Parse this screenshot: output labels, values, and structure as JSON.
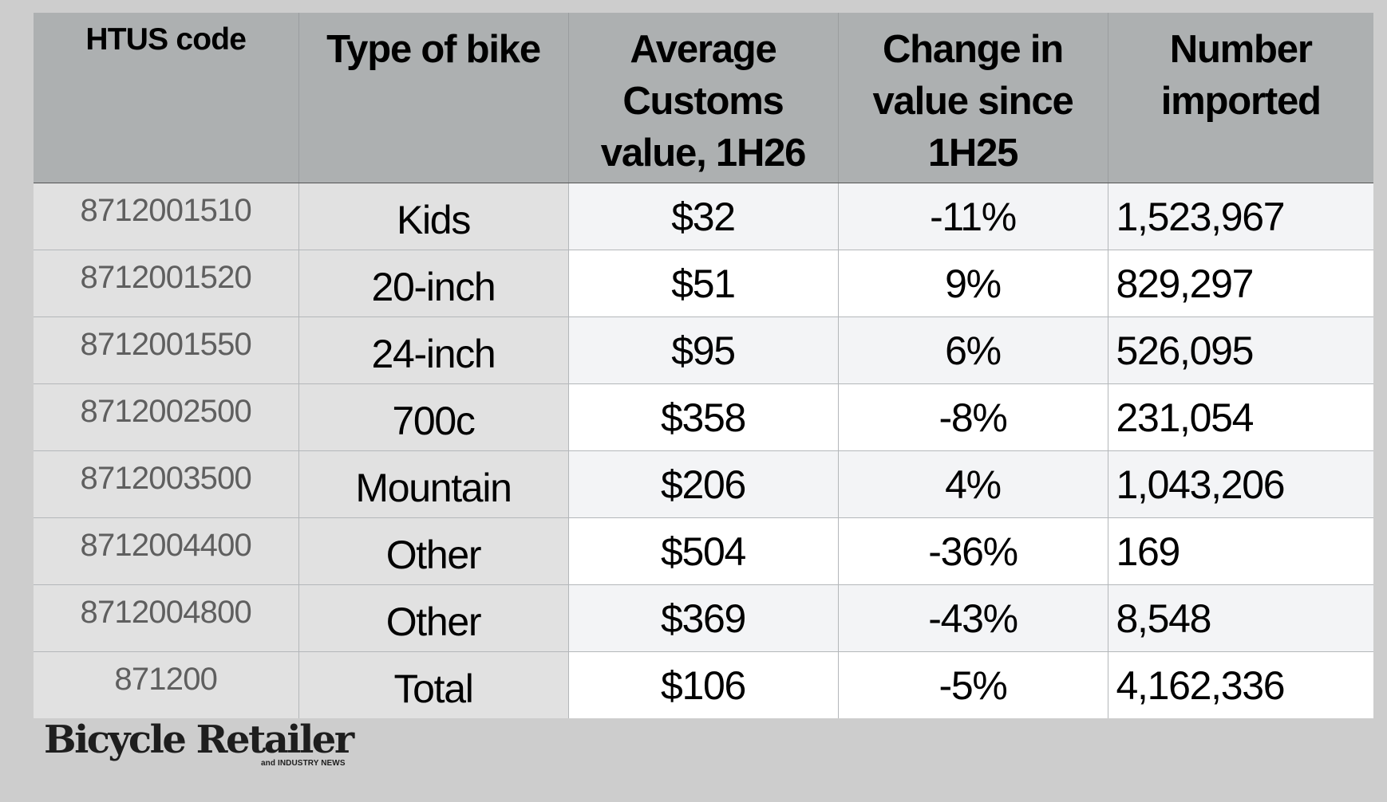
{
  "chart_data": {
    "type": "table",
    "columns": [
      "HTUS code",
      "Type of bike",
      "Average Customs value, 1H26",
      "Change in value since 1H25",
      "Number imported"
    ],
    "header_lines": [
      [
        "HTUS code"
      ],
      [
        "Type of bike"
      ],
      [
        "Average",
        "Customs",
        "value, 1H26"
      ],
      [
        "Change in",
        "value since",
        "1H25"
      ],
      [
        "Number",
        "imported"
      ]
    ],
    "rows": [
      {
        "code": "8712001510",
        "type": "Kids",
        "avg_value": "$32",
        "change": "-11%",
        "imported": "1,523,967"
      },
      {
        "code": "8712001520",
        "type": "20-inch",
        "avg_value": "$51",
        "change": "9%",
        "imported": "829,297"
      },
      {
        "code": "8712001550",
        "type": "24-inch",
        "avg_value": "$95",
        "change": "6%",
        "imported": "526,095"
      },
      {
        "code": "8712002500",
        "type": "700c",
        "avg_value": "$358",
        "change": "-8%",
        "imported": "231,054"
      },
      {
        "code": "8712003500",
        "type": "Mountain",
        "avg_value": "$206",
        "change": "4%",
        "imported": "1,043,206"
      },
      {
        "code": "8712004400",
        "type": "Other",
        "avg_value": "$504",
        "change": "-36%",
        "imported": "169"
      },
      {
        "code": "8712004800",
        "type": "Other",
        "avg_value": "$369",
        "change": "-43%",
        "imported": "8,548"
      },
      {
        "code": "871200",
        "type": "Total",
        "avg_value": "$106",
        "change": "-5%",
        "imported": "4,162,336"
      }
    ]
  },
  "brand": {
    "name": "Bicycle Retailer",
    "tagline": "and INDUSTRY NEWS"
  },
  "colors": {
    "header_bg": "#adb0b1",
    "label_cell_bg": "#e1e1e1",
    "value_cell_bg": "#ffffff",
    "value_cell_alt_bg": "#f3f4f6",
    "page_bg": "#cdcdcd",
    "code_text": "#5f5f5f"
  }
}
